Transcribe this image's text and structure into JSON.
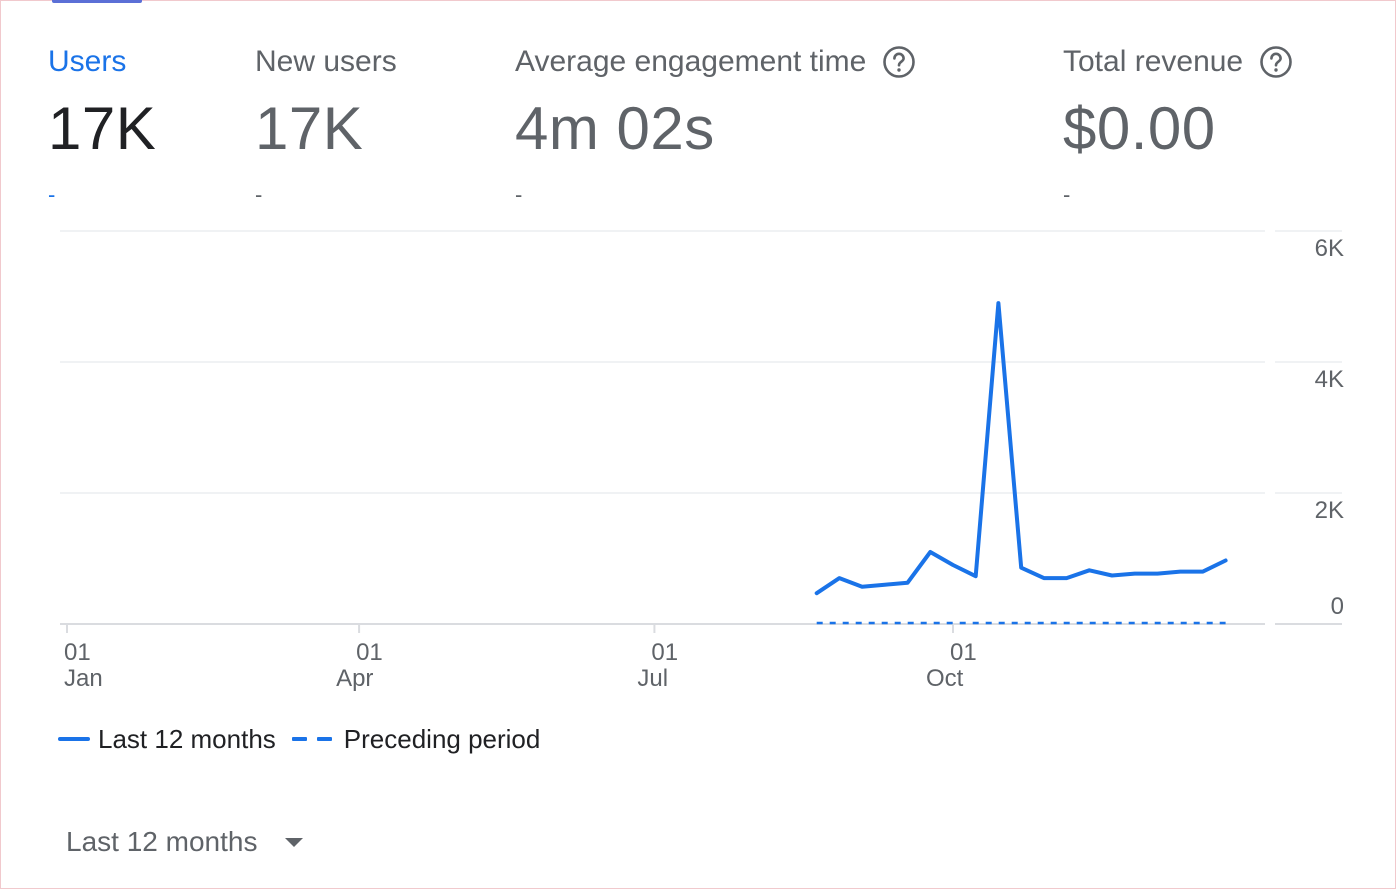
{
  "metrics": [
    {
      "label": "Users",
      "value": "17K",
      "delta": "-",
      "active": true,
      "help": false
    },
    {
      "label": "New users",
      "value": "17K",
      "delta": "-",
      "active": false,
      "help": false
    },
    {
      "label": "Average engagement time",
      "value": "4m 02s",
      "delta": "-",
      "active": false,
      "help": true
    },
    {
      "label": "Total revenue",
      "value": "$0.00",
      "delta": "-",
      "active": false,
      "help": true
    }
  ],
  "chart_data": {
    "type": "line",
    "xlabel": "",
    "ylabel": "",
    "ylim": [
      0,
      6000
    ],
    "xlim": [
      "2023-01-01",
      "2023-12-31"
    ],
    "y_ticks": [
      {
        "value": 0,
        "label": "0"
      },
      {
        "value": 2000,
        "label": "2K"
      },
      {
        "value": 4000,
        "label": "4K"
      },
      {
        "value": 6000,
        "label": "6K"
      }
    ],
    "x_ticks": [
      {
        "date": "2023-01-01",
        "day": "01",
        "month": "Jan"
      },
      {
        "date": "2023-04-01",
        "day": "01",
        "month": "Apr"
      },
      {
        "date": "2023-07-01",
        "day": "01",
        "month": "Jul"
      },
      {
        "date": "2023-10-01",
        "day": "01",
        "month": "Oct"
      }
    ],
    "grid": true,
    "legend": "bottom-left",
    "series": [
      {
        "name": "Last 12 months",
        "style": "solid",
        "color": "#1a73e8",
        "x": [
          "2023-08-20",
          "2023-08-27",
          "2023-09-03",
          "2023-09-10",
          "2023-09-17",
          "2023-09-24",
          "2023-10-01",
          "2023-10-08",
          "2023-10-15",
          "2023-10-22",
          "2023-10-29",
          "2023-11-05",
          "2023-11-12",
          "2023-11-19",
          "2023-11-26",
          "2023-12-03",
          "2023-12-10",
          "2023-12-17",
          "2023-12-24"
        ],
        "y": [
          470,
          700,
          570,
          600,
          630,
          1100,
          900,
          730,
          4900,
          860,
          700,
          700,
          820,
          740,
          770,
          770,
          800,
          800,
          970
        ]
      },
      {
        "name": "Preceding period",
        "style": "dashed",
        "color": "#1a73e8",
        "x": [
          "2023-08-20",
          "2023-12-24"
        ],
        "y": [
          0,
          0
        ]
      }
    ]
  },
  "legend": {
    "items": [
      {
        "label": "Last 12 months"
      },
      {
        "label": "Preceding period"
      }
    ]
  },
  "range_select": {
    "value": "Last 12 months"
  }
}
